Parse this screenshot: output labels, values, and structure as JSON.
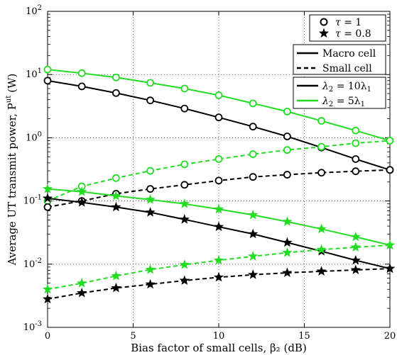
{
  "chart_data": {
    "type": "line",
    "xlabel": "Bias factor of small cells, β₂ (dB)",
    "ylabel": "Average UT transmit power, P",
    "ylabel_superscript": "ut",
    "ylabel_unit": "(W)",
    "xlim": [
      0,
      20
    ],
    "ylim": [
      0.001,
      100
    ],
    "yscale": "log",
    "grid": true,
    "x_ticks": [
      "0",
      "5",
      "10",
      "15",
      "20"
    ],
    "y_ticks": [
      {
        "base": "10",
        "exp": "-3"
      },
      {
        "base": "10",
        "exp": "-2"
      },
      {
        "base": "10",
        "exp": "-1"
      },
      {
        "base": "10",
        "exp": "0"
      },
      {
        "base": "10",
        "exp": "1"
      },
      {
        "base": "10",
        "exp": "2"
      }
    ],
    "legends": [
      {
        "position": "top-right",
        "entries": [
          {
            "marker": "circle",
            "label_var": "τ",
            "label_rest": " = 1"
          },
          {
            "marker": "star",
            "label_var": "τ",
            "label_rest": " = 0.8"
          }
        ]
      },
      {
        "position": "top-right",
        "entries": [
          {
            "line": "solid",
            "label": "Macro cell"
          },
          {
            "line": "dashed",
            "label": "Small cell"
          }
        ]
      },
      {
        "position": "top-right",
        "entries": [
          {
            "color": "#000000",
            "label_var": "λ",
            "label_sub": "2",
            "label_rest": " = 10λ",
            "label_sub2": "1"
          },
          {
            "color": "#22dd22",
            "label_var": "λ",
            "label_sub": "2",
            "label_rest": " = 5λ",
            "label_sub2": "1"
          }
        ]
      }
    ],
    "x": [
      0,
      2,
      4,
      6,
      8,
      10,
      12,
      14,
      16,
      18,
      20
    ],
    "series": [
      {
        "color": "#22dd22",
        "dash": "solid",
        "marker": "circle",
        "values": [
          12,
          10.5,
          9,
          7.4,
          6,
          4.7,
          3.5,
          2.6,
          1.85,
          1.3,
          0.9
        ]
      },
      {
        "color": "#000000",
        "dash": "solid",
        "marker": "circle",
        "values": [
          8,
          6.5,
          5.1,
          3.9,
          2.9,
          2.1,
          1.5,
          1.05,
          0.7,
          0.46,
          0.31
        ]
      },
      {
        "color": "#22dd22",
        "dash": "dashed",
        "marker": "circle",
        "values": [
          0.1,
          0.17,
          0.23,
          0.3,
          0.38,
          0.46,
          0.55,
          0.64,
          0.72,
          0.82,
          0.9
        ]
      },
      {
        "color": "#000000",
        "dash": "dashed",
        "marker": "circle",
        "values": [
          0.08,
          0.1,
          0.13,
          0.155,
          0.18,
          0.21,
          0.24,
          0.26,
          0.28,
          0.295,
          0.31
        ]
      },
      {
        "color": "#22dd22",
        "dash": "solid",
        "marker": "star",
        "values": [
          0.155,
          0.14,
          0.12,
          0.105,
          0.09,
          0.074,
          0.06,
          0.047,
          0.036,
          0.027,
          0.02
        ]
      },
      {
        "color": "#000000",
        "dash": "solid",
        "marker": "star",
        "values": [
          0.11,
          0.095,
          0.08,
          0.066,
          0.051,
          0.039,
          0.03,
          0.022,
          0.016,
          0.0115,
          0.0085
        ]
      },
      {
        "color": "#22dd22",
        "dash": "dashed",
        "marker": "star",
        "values": [
          0.004,
          0.005,
          0.0065,
          0.0082,
          0.0098,
          0.0115,
          0.0133,
          0.0152,
          0.017,
          0.0185,
          0.02
        ]
      },
      {
        "color": "#000000",
        "dash": "dashed",
        "marker": "star",
        "values": [
          0.0028,
          0.0035,
          0.0042,
          0.0048,
          0.0055,
          0.0062,
          0.0068,
          0.0073,
          0.0077,
          0.0081,
          0.0085
        ]
      }
    ]
  }
}
